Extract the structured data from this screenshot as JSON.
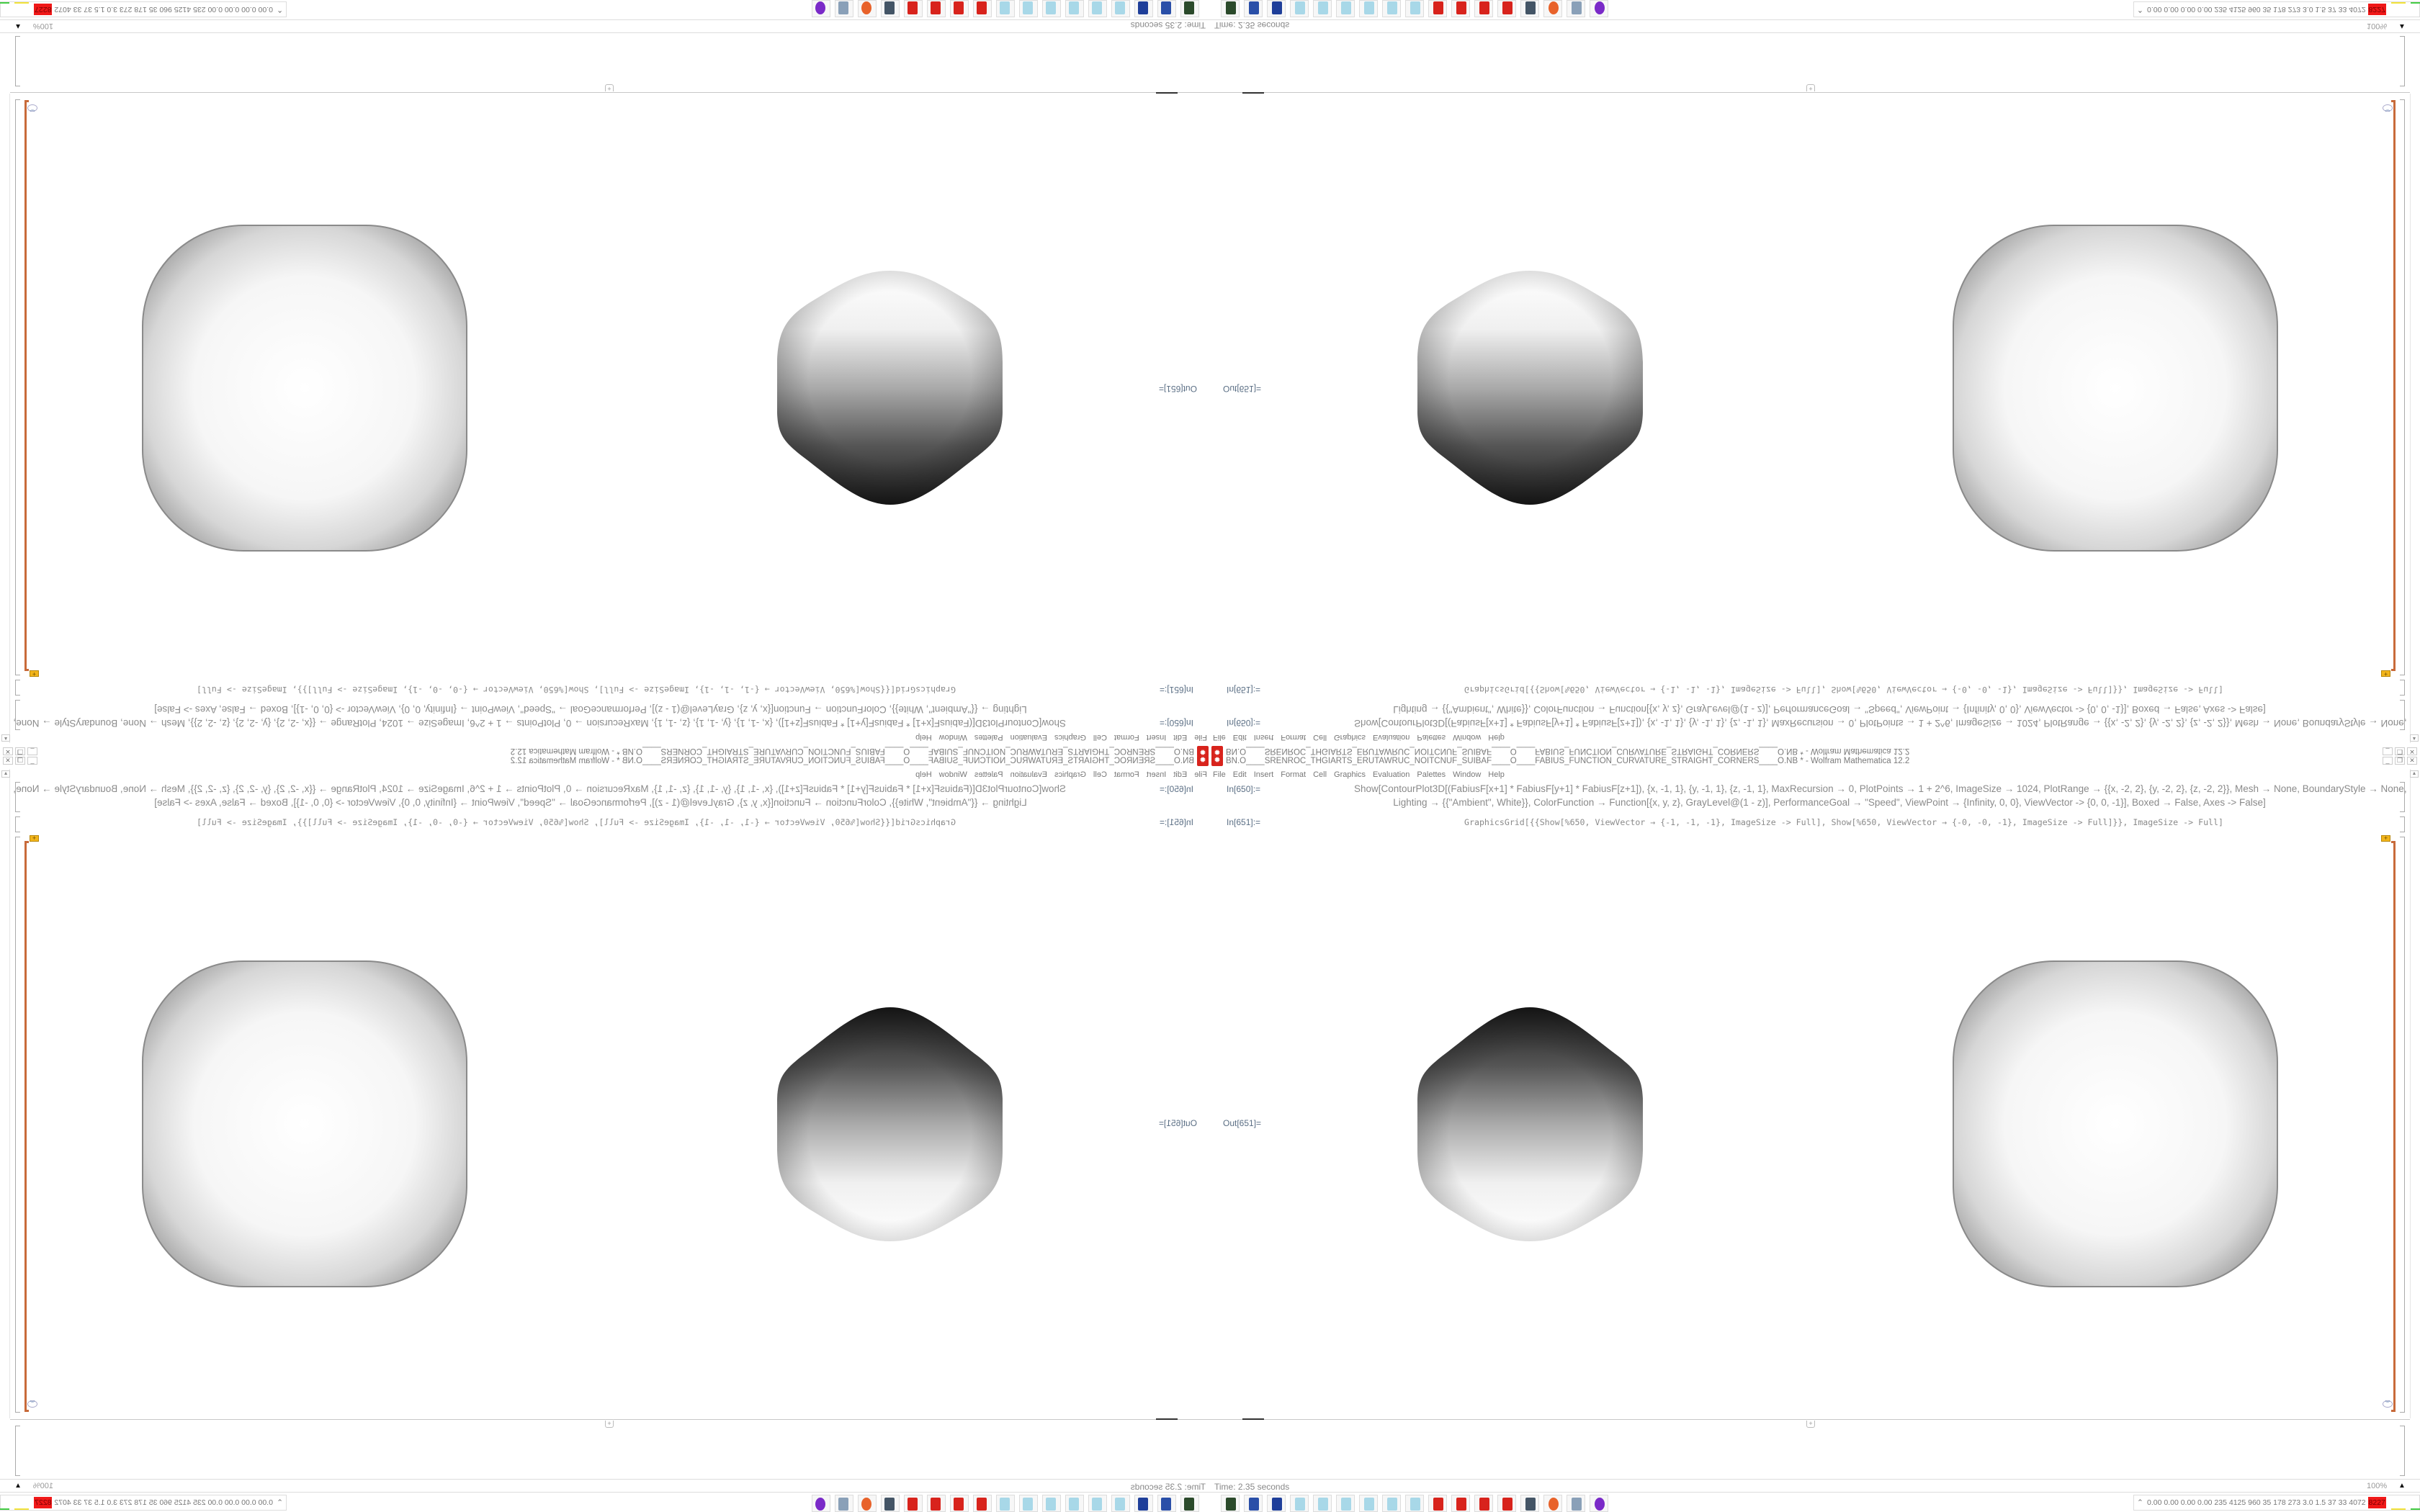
{
  "window": {
    "title": "BN.O____SRENROC_THGIARTS_ERUTAWRUC_NOITCNUF_SUIBAF____O____FABIUS_FUNCTION_CURVATURE_STRAIGHT_CORNERS____O.NB * - Wolfram Mathematica 12.2",
    "app_icon": "wolfram-gear-icon",
    "controls": [
      "minimize",
      "restore",
      "close"
    ]
  },
  "menu": [
    "File",
    "Edit",
    "Insert",
    "Format",
    "Cell",
    "Graphics",
    "Evaluation",
    "Palettes",
    "Window",
    "Help"
  ],
  "cells": [
    {
      "label": "In[650]:=",
      "lines": [
        "Show[ContourPlot3D[(FabiusF[x+1] * FabiusF[y+1] * FabiusF[z+1]), {x, -1, 1}, {y, -1, 1}, {z, -1, 1}, MaxRecursion → 0, PlotPoints → 1 + 2^6, ImageSize → 1024, PlotRange → {{x, -2, 2}, {y, -2, 2}, {z, -2, 2}}, Mesh → None, BoundaryStyle → None,",
        "Lighting → {{\"Ambient\", White}}, ColorFunction → Function[{x, y, z}, GrayLevel@(1 - z)], PerformanceGoal → \"Speed\", ViewPoint → {Infinity, 0, 0}, ViewVector -> {0, 0, -1}], Boxed → False, Axes -> False]"
      ]
    },
    {
      "label": "In[651]:=",
      "lines": [
        "GraphicsGrid[{{Show[%650, ViewVector → {-1, -1, -1}, ImageSize -> Full], Show[%650, ViewVector → {-0, -0, -1}, ImageSize -> Full]}}, ImageSize -> Full]"
      ]
    }
  ],
  "output": {
    "label": "Out[651]="
  },
  "status": {
    "text": "Time: 2.35 seconds",
    "zoom": "100%"
  },
  "taskbar": {
    "icons": [
      "terminal-icon",
      "monitor-icon",
      "floppy-64-icon",
      "notepad-icon",
      "notepad-icon",
      "notepad-icon",
      "notepad-icon",
      "notepad-icon",
      "notepad-icon",
      "wolfram-icon",
      "wolfram-icon",
      "wolfram-icon",
      "wolfram-icon",
      "webcam-icon",
      "firefox-icon",
      "document-scroll-icon",
      "owl-icon"
    ],
    "tray_values": "0.00 0.00 0.00 0.00 235 4125 960  35  178  273  3.0  1.5  37  33  4072",
    "tray_hot": "8227"
  },
  "colors": {
    "accent_orange": "#c86a3a",
    "wolfram_red": "#d8231c",
    "badge_yellow": "#f2b51b"
  }
}
